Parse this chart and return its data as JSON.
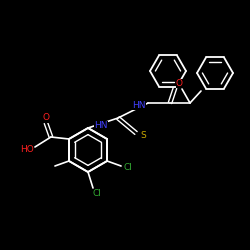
{
  "background_color": "#000000",
  "bond_color": "#ffffff",
  "atom_colors": {
    "N": "#4040ff",
    "O": "#ff2020",
    "S": "#ccaa00",
    "Cl": "#33aa33",
    "HO": "#ff2020"
  },
  "figsize": [
    2.5,
    2.5
  ],
  "dpi": 100
}
